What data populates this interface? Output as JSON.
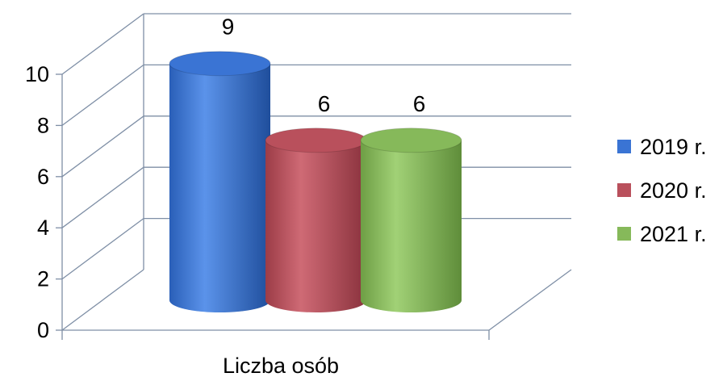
{
  "chart_data": {
    "type": "bar",
    "categories": [
      "Liczba osób"
    ],
    "series": [
      {
        "name": "2019 r.",
        "values": [
          9
        ],
        "color": "#3a74d4"
      },
      {
        "name": "2020 r.",
        "values": [
          6
        ],
        "color": "#b9505c"
      },
      {
        "name": "2021 r.",
        "values": [
          6
        ],
        "color": "#86b95a"
      }
    ],
    "y_ticks": [
      "0",
      "2",
      "4",
      "6",
      "8",
      "10"
    ],
    "ylim": [
      0,
      10
    ],
    "data_labels": [
      "9",
      "6",
      "6"
    ],
    "legend_position": "right",
    "grid": true,
    "style": "3d-cylinder"
  }
}
